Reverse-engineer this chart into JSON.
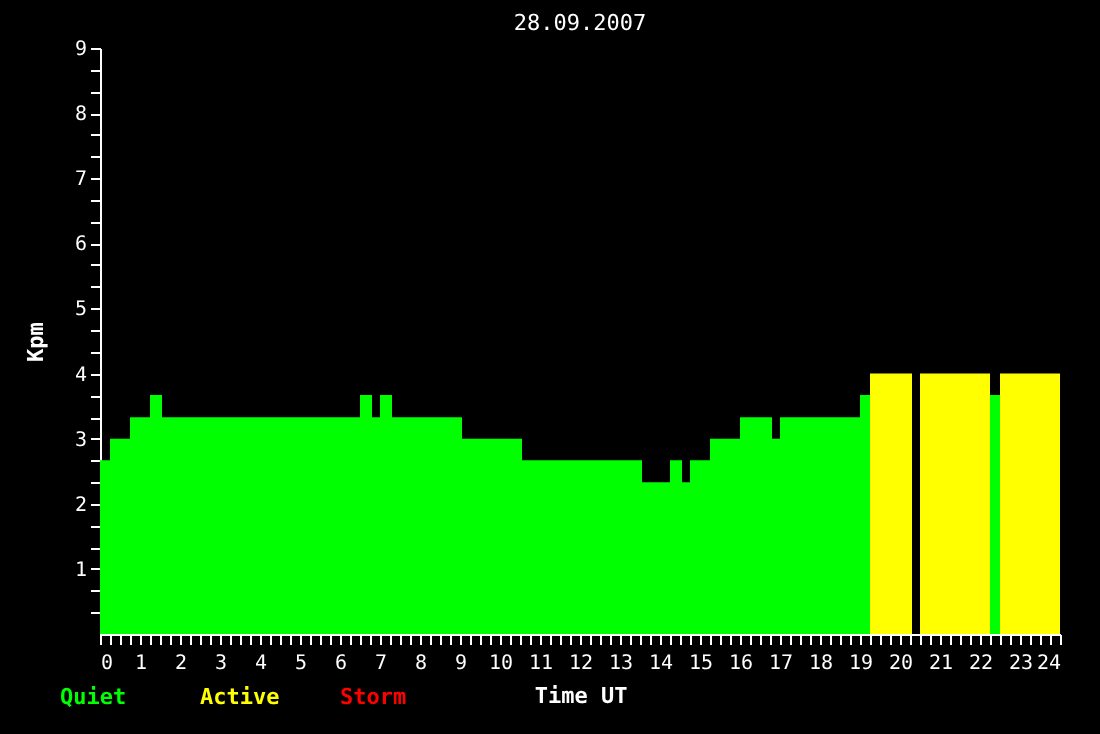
{
  "chart_data": {
    "type": "histogram",
    "title": "28.09.2007",
    "xlabel": "Time UT",
    "ylabel": "Kpm",
    "bins": [
      0,
      0.25,
      0.75,
      1.25,
      1.55,
      6.5,
      6.8,
      7.0,
      7.3,
      9.05,
      10.55,
      13.55,
      14.25,
      14.55,
      14.75,
      15.25,
      16.0,
      16.8,
      17.0,
      19.0,
      19.25,
      20.3,
      20.5,
      22.25,
      22.5,
      24
    ],
    "series": [
      {
        "name": "Quiet",
        "color": "#00ff00",
        "values": [
          2.67,
          3,
          3.33,
          3.67,
          3.33,
          3.67,
          3.33,
          3.67,
          3.33,
          3,
          2.67,
          2.33,
          2.67,
          2.33,
          2.67,
          3,
          3.33,
          3,
          3.33,
          3.67,
          null,
          null,
          null,
          3.67,
          null
        ]
      },
      {
        "name": "Active",
        "color": "#ffff00",
        "values": [
          null,
          null,
          null,
          null,
          null,
          null,
          null,
          null,
          null,
          null,
          null,
          null,
          null,
          null,
          null,
          null,
          null,
          null,
          null,
          null,
          4,
          null,
          4,
          null,
          4
        ]
      }
    ],
    "annotations": [
      "Storm"
    ],
    "xlim": [
      0,
      24
    ],
    "ylim": [
      0,
      9
    ],
    "xticks": [
      0,
      {
        "value": 0.25,
        "label": null
      },
      {
        "value": 0.5,
        "label": null
      },
      {
        "value": 0.75,
        "label": null
      },
      1,
      {
        "value": 1.25,
        "label": null
      },
      {
        "value": 1.5,
        "label": null
      },
      {
        "value": 1.75,
        "label": null
      },
      2,
      {
        "value": 2.25,
        "label": null
      },
      {
        "value": 2.5,
        "label": null
      },
      {
        "value": 2.75,
        "label": null
      },
      3,
      {
        "value": 3.25,
        "label": null
      },
      {
        "value": 3.5,
        "label": null
      },
      {
        "value": 3.75,
        "label": null
      },
      4,
      {
        "value": 4.25,
        "label": null
      },
      {
        "value": 4.5,
        "label": null
      },
      {
        "value": 4.75,
        "label": null
      },
      5,
      {
        "value": 5.25,
        "label": null
      },
      {
        "value": 5.5,
        "label": null
      },
      {
        "value": 5.75,
        "label": null
      },
      6,
      {
        "value": 6.25,
        "label": null
      },
      {
        "value": 6.5,
        "label": null
      },
      {
        "value": 6.75,
        "label": null
      },
      7,
      {
        "value": 7.25,
        "label": null
      },
      {
        "value": 7.5,
        "label": null
      },
      {
        "value": 7.75,
        "label": null
      },
      8,
      {
        "value": 8.25,
        "label": null
      },
      {
        "value": 8.5,
        "label": null
      },
      {
        "value": 8.75,
        "label": null
      },
      9,
      {
        "value": 9.25,
        "label": null
      },
      {
        "value": 9.5,
        "label": null
      },
      {
        "value": 9.75,
        "label": null
      },
      10,
      {
        "value": 10.25,
        "label": null
      },
      {
        "value": 10.5,
        "label": null
      },
      {
        "value": 10.75,
        "label": null
      },
      11,
      {
        "value": 11.25,
        "label": null
      },
      {
        "value": 11.5,
        "label": null
      },
      {
        "value": 11.75,
        "label": null
      },
      12,
      {
        "value": 12.25,
        "label": null
      },
      {
        "value": 12.5,
        "label": null
      },
      {
        "value": 12.75,
        "label": null
      },
      13,
      {
        "value": 13.25,
        "label": null
      },
      {
        "value": 13.5,
        "label": null
      },
      {
        "value": 13.75,
        "label": null
      },
      14,
      {
        "value": 14.25,
        "label": null
      },
      {
        "value": 14.5,
        "label": null
      },
      {
        "value": 14.75,
        "label": null
      },
      15,
      {
        "value": 15.25,
        "label": null
      },
      {
        "value": 15.5,
        "label": null
      },
      {
        "value": 15.75,
        "label": null
      },
      16,
      {
        "value": 16.25,
        "label": null
      },
      {
        "value": 16.5,
        "label": null
      },
      {
        "value": 16.75,
        "label": null
      },
      17,
      {
        "value": 17.25,
        "label": null
      },
      {
        "value": 17.5,
        "label": null
      },
      {
        "value": 17.75,
        "label": null
      },
      18,
      {
        "value": 18.25,
        "label": null
      },
      {
        "value": 18.5,
        "label": null
      },
      {
        "value": 18.75,
        "label": null
      },
      19,
      {
        "value": 19.25,
        "label": null
      },
      {
        "value": 19.5,
        "label": null
      },
      {
        "value": 19.75,
        "label": null
      },
      20,
      {
        "value": 20.25,
        "label": null
      },
      {
        "value": 20.5,
        "label": null
      },
      {
        "value": 20.75,
        "label": null
      },
      21,
      {
        "value": 21.25,
        "label": null
      },
      {
        "value": 21.5,
        "label": null
      },
      {
        "value": 21.75,
        "label": null
      },
      22,
      {
        "value": 22.25,
        "label": null
      },
      {
        "value": 22.5,
        "label": null
      },
      {
        "value": 22.75,
        "label": null
      },
      23,
      {
        "value": 23.25,
        "label": null
      },
      {
        "value": 23.5,
        "label": null
      },
      {
        "value": 23.75,
        "label": null
      },
      24
    ],
    "yticks": [
      {
        "value": 0.33,
        "label": null
      },
      {
        "value": 0.67,
        "label": null
      },
      1,
      {
        "value": 1.33,
        "label": null
      },
      {
        "value": 1.67,
        "label": null
      },
      2,
      {
        "value": 2.33,
        "label": null
      },
      {
        "value": 2.67,
        "label": null
      },
      3,
      {
        "value": 3.33,
        "label": null
      },
      {
        "value": 3.67,
        "label": null
      },
      4,
      {
        "value": 4.33,
        "label": null
      },
      {
        "value": 4.67,
        "label": null
      },
      5,
      {
        "value": 5.33,
        "label": null
      },
      {
        "value": 5.67,
        "label": null
      },
      6,
      {
        "value": 6.33,
        "label": null
      },
      {
        "value": 6.67,
        "label": null
      },
      7,
      {
        "value": 7.33,
        "label": null
      },
      {
        "value": 7.67,
        "label": null
      },
      8,
      {
        "value": 8.33,
        "label": null
      },
      {
        "value": 8.67,
        "label": null
      },
      9
    ],
    "grid": false,
    "legend": "bottom"
  }
}
